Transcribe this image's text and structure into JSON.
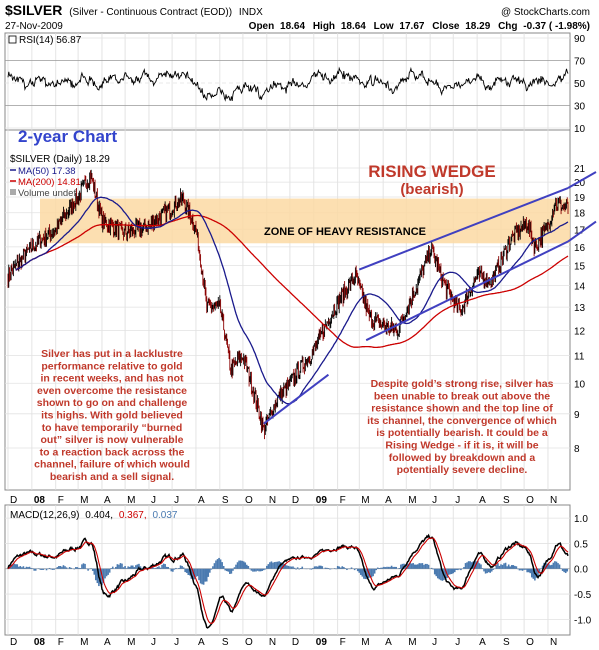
{
  "header": {
    "symbol": "$SILVER",
    "contract": "(Silver - Continuous Contract (EOD))",
    "exchange": "INDX",
    "source": "@ StockCharts.com",
    "date": "27-Nov-2009",
    "open_label": "Open",
    "open": "18.64",
    "high_label": "High",
    "high": "18.64",
    "low_label": "Low",
    "low": "17.67",
    "close_label": "Close",
    "close": "18.29",
    "chg_label": "Chg",
    "chg": "-0.37 ( -1.98%)"
  },
  "rsi_panel": {
    "legend": "RSI(14) 56.87",
    "ticks": [
      "90",
      "70",
      "50",
      "30",
      "10"
    ]
  },
  "price_panel": {
    "chart_title": "2-year Chart",
    "legend_main": "$SILVER (Daily) 18.29",
    "legend_ma50": "MA(50) 17.38",
    "legend_ma200": "MA(200) 14.81",
    "legend_volume": "Volume undef",
    "pattern_title": "RISING WEDGE",
    "pattern_sub": "(bearish)",
    "zone_label": "ZONE OF HEAVY RESISTANCE",
    "left_note": [
      "Silver has put in a lacklustre",
      "performance relative to gold",
      "in recent weeks, and has not",
      "even overcome the resistance",
      "shown to go on and challenge",
      "its highs. With gold believed",
      "to have temporarily “burned",
      "out” silver is now vulnerable",
      "to a reaction back across the",
      "channel, failure of which would",
      "bearish and a sell signal."
    ],
    "right_note": [
      "Despite gold’s strong rise, silver has",
      "been unable to break out above the",
      "resistance shown and the top line of",
      "its channel, the convergence of which",
      "is potentially bearish. It could be a",
      "Rising Wedge - if it is, it will be",
      "followed by breakdown and a",
      "potentially severe decline."
    ],
    "y_ticks": [
      "21",
      "20",
      "19",
      "18",
      "17",
      "16",
      "15",
      "14",
      "13",
      "12",
      "11",
      "10",
      "9",
      "8"
    ]
  },
  "x_axis": {
    "labels": [
      "D",
      "08",
      "F",
      "M",
      "A",
      "M",
      "J",
      "J",
      "A",
      "S",
      "O",
      "N",
      "D",
      "09",
      "F",
      "M",
      "A",
      "M",
      "J",
      "J",
      "A",
      "S",
      "O",
      "N"
    ]
  },
  "macd_panel": {
    "legend_name": "MACD(12,26,9)",
    "legend_v1": "0.404,",
    "legend_v2": "0.367,",
    "legend_v3": "0.037",
    "ticks": [
      "1.0",
      "0.5",
      "0.0",
      "-0.5",
      "-1.0"
    ]
  },
  "colors": {
    "price_bars": "#8b0000",
    "ma50": "#1a1a8c",
    "ma200": "#cc0000",
    "zone": "#fbd9a3",
    "wedge_lines": "#4040c0",
    "annotation": "#c0392b",
    "title_blue": "#3344cc",
    "rsi_high": "#2e8b2e",
    "rsi_low": "#b22222",
    "macd_hist": "#4a7ab0"
  },
  "chart_data": {
    "type": "line",
    "x_range": [
      "2007-12-01",
      "2009-11-27"
    ],
    "price": {
      "name": "$SILVER (Daily)",
      "ylim": [
        8,
        21
      ],
      "scale": "log",
      "x": [
        "2007-12-01",
        "2008-01-01",
        "2008-02-01",
        "2008-03-01",
        "2008-03-17",
        "2008-04-01",
        "2008-05-01",
        "2008-06-01",
        "2008-07-15",
        "2008-08-01",
        "2008-08-15",
        "2008-09-01",
        "2008-09-15",
        "2008-10-01",
        "2008-10-28",
        "2008-11-15",
        "2008-12-01",
        "2009-01-01",
        "2009-02-01",
        "2009-02-24",
        "2009-03-15",
        "2009-04-01",
        "2009-04-20",
        "2009-05-15",
        "2009-06-02",
        "2009-06-20",
        "2009-07-10",
        "2009-08-01",
        "2009-08-20",
        "2009-09-15",
        "2009-10-05",
        "2009-10-15",
        "2009-11-01",
        "2009-11-10",
        "2009-11-27"
      ],
      "close": [
        14.5,
        16.0,
        17.0,
        19.0,
        20.5,
        17.5,
        16.8,
        17.2,
        18.9,
        17.0,
        13.0,
        13.0,
        10.5,
        11.0,
        8.5,
        9.5,
        10.0,
        11.2,
        13.2,
        14.5,
        12.5,
        12.2,
        12.0,
        14.0,
        15.9,
        14.0,
        12.8,
        14.5,
        14.2,
        16.5,
        17.4,
        16.0,
        17.2,
        18.6,
        18.29
      ]
    },
    "resistance_zone": [
      16.2,
      18.9
    ],
    "wedge_upper": {
      "x": [
        "2009-03-01",
        "2009-11-27"
      ],
      "y": [
        14.8,
        19.6
      ]
    },
    "wedge_lower": {
      "x": [
        "2009-03-10",
        "2009-11-27"
      ],
      "y": [
        11.6,
        16.3
      ]
    },
    "support_2008": {
      "x": [
        "2008-10-28",
        "2009-01-20"
      ],
      "y": [
        8.7,
        10.3
      ]
    },
    "rsi": {
      "ylim": [
        10,
        90
      ],
      "last": 56.87
    },
    "macd": {
      "ylim": [
        -1.25,
        1.2
      ],
      "macd": 0.404,
      "signal": 0.367,
      "histogram": 0.037
    }
  }
}
